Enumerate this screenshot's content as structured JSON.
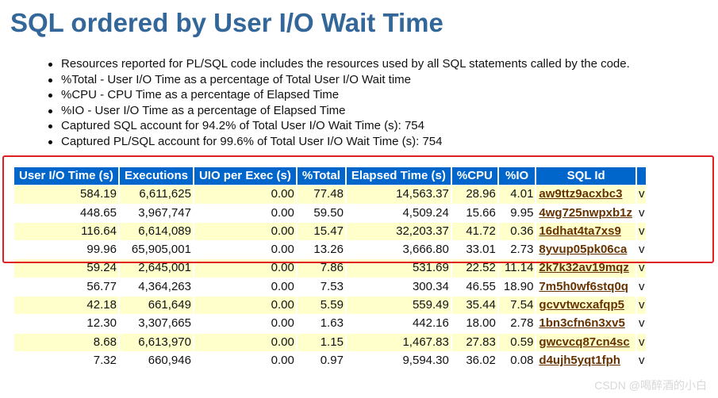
{
  "page": {
    "title": "SQL ordered by User I/O Wait Time"
  },
  "notes": [
    "Resources reported for PL/SQL code includes the resources used by all SQL statements called by the code.",
    "%Total - User I/O Time as a percentage of Total User I/O Wait time",
    "%CPU - CPU Time as a percentage of Elapsed Time",
    "%IO - User I/O Time as a percentage of Elapsed Time",
    "Captured SQL account for 94.2% of Total User I/O Wait Time (s): 754",
    "Captured PL/SQL account for 99.6% of Total User I/O Wait Time (s): 754"
  ],
  "table": {
    "headers": [
      "User I/O Time (s)",
      "Executions",
      "UIO per Exec (s)",
      "%Total",
      "Elapsed Time (s)",
      "%CPU",
      "%IO",
      "SQL Id"
    ],
    "rows": [
      [
        "584.19",
        "6,611,625",
        "0.00",
        "77.48",
        "14,563.37",
        "28.96",
        "4.01",
        "aw9ttz9acxbc3",
        "v"
      ],
      [
        "448.65",
        "3,967,747",
        "0.00",
        "59.50",
        "4,509.24",
        "15.66",
        "9.95",
        "4wg725nwpxb1z",
        "v"
      ],
      [
        "116.64",
        "6,614,089",
        "0.00",
        "15.47",
        "32,203.37",
        "41.72",
        "0.36",
        "16dhat4ta7xs9",
        "v"
      ],
      [
        "99.96",
        "65,905,001",
        "0.00",
        "13.26",
        "3,666.80",
        "33.01",
        "2.73",
        "8yvup05pk06ca",
        "v"
      ],
      [
        "59.24",
        "2,645,001",
        "0.00",
        "7.86",
        "531.69",
        "22.52",
        "11.14",
        "2k7k32av19mqz",
        "v"
      ],
      [
        "56.77",
        "4,364,263",
        "0.00",
        "7.53",
        "300.34",
        "46.55",
        "18.90",
        "7m5h0wf6stq0q",
        "v"
      ],
      [
        "42.18",
        "661,649",
        "0.00",
        "5.59",
        "559.49",
        "35.44",
        "7.54",
        "gcvvtwcxafqp5",
        "v"
      ],
      [
        "12.30",
        "3,307,665",
        "0.00",
        "1.63",
        "442.16",
        "18.00",
        "2.78",
        "1bn3cfn6n3xv5",
        "v"
      ],
      [
        "8.68",
        "6,613,970",
        "0.00",
        "1.15",
        "1,467.83",
        "27.83",
        "0.59",
        "gwcvcq87cn4sc",
        "v"
      ],
      [
        "7.32",
        "660,946",
        "0.00",
        "0.97",
        "9,594.30",
        "36.02",
        "0.08",
        "d4ujh5yqt1fph",
        "v"
      ]
    ]
  },
  "watermark": "CSDN @喝醉酒的小白"
}
